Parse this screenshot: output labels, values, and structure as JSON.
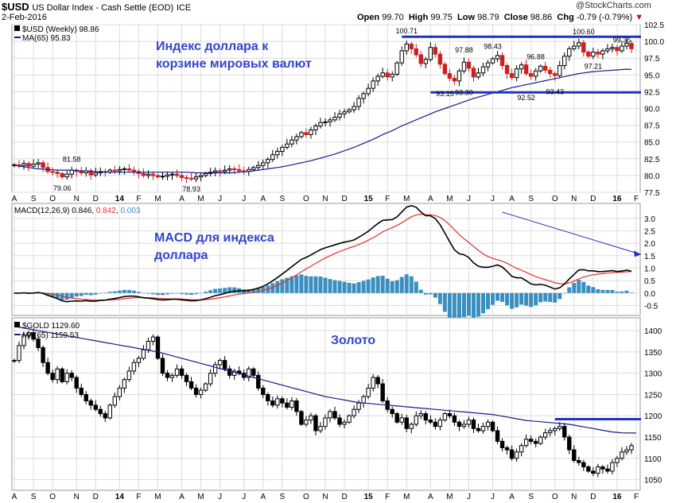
{
  "header": {
    "symbol": "$USD",
    "description": "US Dollar Index - Cash Settle (EOD)",
    "exchange": "ICE",
    "date": "2-Feb-2016",
    "watermark": "@StockCharts.com",
    "open_label": "Open",
    "open": "99.70",
    "high_label": "High",
    "high": "99.75",
    "low_label": "Low",
    "low": "98.79",
    "close_label": "Close",
    "close": "98.86",
    "chg_label": "Chg",
    "chg": "-0.79 (-0.79%)",
    "down_arrow": "▼"
  },
  "colors": {
    "up": "#000000",
    "down": "#cc2020",
    "ma": "#1a1a8c",
    "macd_line": "#000000",
    "signal_line": "#e03030",
    "histogram": "#3a8fc0",
    "annotation_blue": "#3344cc",
    "resistance": "#2233bb",
    "grid": "#dcdcdc"
  },
  "x_axis": {
    "labels": [
      {
        "t": "A",
        "i": 0
      },
      {
        "t": "S",
        "i": 4
      },
      {
        "t": "O",
        "i": 8
      },
      {
        "t": "N",
        "i": 13
      },
      {
        "t": "D",
        "i": 17
      },
      {
        "t": "14",
        "i": 22,
        "bold": true
      },
      {
        "t": "F",
        "i": 26
      },
      {
        "t": "M",
        "i": 30
      },
      {
        "t": "A",
        "i": 35
      },
      {
        "t": "M",
        "i": 39
      },
      {
        "t": "J",
        "i": 43
      },
      {
        "t": "J",
        "i": 48
      },
      {
        "t": "A",
        "i": 52
      },
      {
        "t": "S",
        "i": 56
      },
      {
        "t": "O",
        "i": 61
      },
      {
        "t": "N",
        "i": 65
      },
      {
        "t": "D",
        "i": 69
      },
      {
        "t": "15",
        "i": 74,
        "bold": true
      },
      {
        "t": "F",
        "i": 78
      },
      {
        "t": "M",
        "i": 82
      },
      {
        "t": "A",
        "i": 87
      },
      {
        "t": "M",
        "i": 91
      },
      {
        "t": "J",
        "i": 95
      },
      {
        "t": "J",
        "i": 100
      },
      {
        "t": "A",
        "i": 104
      },
      {
        "t": "S",
        "i": 108
      },
      {
        "t": "O",
        "i": 113
      },
      {
        "t": "N",
        "i": 117
      },
      {
        "t": "D",
        "i": 121
      },
      {
        "t": "16",
        "i": 126,
        "bold": true
      },
      {
        "t": "F",
        "i": 130
      }
    ]
  },
  "annotations": {
    "usd": "Индекс доллара к корзине мировых валют",
    "usd_line1": "Индекс доллара к",
    "usd_line2": "корзине мировых валют",
    "macd_line1": "MACD для индекса",
    "macd_line2": "доллара",
    "gold": "Золото"
  },
  "chart_data": [
    {
      "type": "candlestick",
      "legend": [
        "$USD (Weekly) 98.86",
        "MA(65) 95.83"
      ],
      "ylim": [
        77.5,
        102.5
      ],
      "yticks": [
        77.5,
        80.0,
        82.5,
        85.0,
        87.5,
        90.0,
        92.5,
        95.0,
        97.5,
        100.0,
        102.5
      ],
      "value_labels": [
        {
          "t": "81.58",
          "i": 12,
          "v": 81.58,
          "pos": "above"
        },
        {
          "t": "79.06",
          "i": 10,
          "v": 79.06,
          "pos": "below"
        },
        {
          "t": "78.93",
          "i": 37,
          "v": 78.93,
          "pos": "below"
        },
        {
          "t": "100.71",
          "i": 82,
          "v": 100.71,
          "pos": "above"
        },
        {
          "t": "93.15",
          "i": 90,
          "v": 93.15,
          "pos": "below"
        },
        {
          "t": "93.30",
          "i": 94,
          "v": 93.3,
          "pos": "below"
        },
        {
          "t": "97.88",
          "i": 94,
          "v": 97.88,
          "pos": "above"
        },
        {
          "t": "98.43",
          "i": 100,
          "v": 98.43,
          "pos": "above"
        },
        {
          "t": "92.52",
          "i": 107,
          "v": 92.52,
          "pos": "below"
        },
        {
          "t": "96.88",
          "i": 109,
          "v": 96.88,
          "pos": "above"
        },
        {
          "t": "93.43",
          "i": 113,
          "v": 93.43,
          "pos": "below"
        },
        {
          "t": "100.60",
          "i": 119,
          "v": 100.6,
          "pos": "above"
        },
        {
          "t": "97.21",
          "i": 121,
          "v": 97.21,
          "pos": "below"
        },
        {
          "t": "99.35",
          "i": 127,
          "v": 99.35,
          "pos": "above"
        }
      ],
      "resistance": 100.7,
      "support": 92.4,
      "closes": [
        81.6,
        81.5,
        81.8,
        81.4,
        81.7,
        81.9,
        81.2,
        80.6,
        80.5,
        80.3,
        79.8,
        80.2,
        80.8,
        80.6,
        80.4,
        80.7,
        80.1,
        80.4,
        80.6,
        80.5,
        80.8,
        80.7,
        80.9,
        81.0,
        80.8,
        80.6,
        80.3,
        80.0,
        80.2,
        80.0,
        79.8,
        79.9,
        80.1,
        80.2,
        80.0,
        79.7,
        79.6,
        79.5,
        79.8,
        80.0,
        80.3,
        80.5,
        80.7,
        80.6,
        80.8,
        81.0,
        80.9,
        80.7,
        80.6,
        80.9,
        81.2,
        81.5,
        81.9,
        82.4,
        83.1,
        83.6,
        84.2,
        84.7,
        85.3,
        85.8,
        86.4,
        86.1,
        86.8,
        87.4,
        87.9,
        88.0,
        88.3,
        88.7,
        89.2,
        89.5,
        89.8,
        90.3,
        91.5,
        92.2,
        93.0,
        94.1,
        94.8,
        95.3,
        94.7,
        95.1,
        96.8,
        98.6,
        99.6,
        98.9,
        98.0,
        96.7,
        97.3,
        99.1,
        98.1,
        96.6,
        95.2,
        94.5,
        94.1,
        95.6,
        96.9,
        96.0,
        94.7,
        95.3,
        96.2,
        96.8,
        97.4,
        97.9,
        96.4,
        95.2,
        94.6,
        95.9,
        96.5,
        95.2,
        94.8,
        95.6,
        96.3,
        95.7,
        95.2,
        94.9,
        96.4,
        97.8,
        98.9,
        99.3,
        99.8,
        98.4,
        97.8,
        98.4,
        98.1,
        98.6,
        98.9,
        99.1,
        98.6,
        99.3,
        99.7,
        98.9
      ],
      "ma": [
        81.55,
        81.4,
        81.3,
        81.2,
        81.1,
        81.0,
        80.95,
        80.9,
        80.85,
        80.8,
        80.8,
        80.8,
        80.8,
        80.75,
        80.7,
        80.7,
        80.65,
        80.6,
        80.55,
        80.5,
        80.5,
        80.5,
        80.5,
        80.5,
        80.5,
        80.5,
        80.5,
        80.5,
        80.5,
        80.5,
        80.5,
        80.5,
        80.5,
        80.5,
        80.5,
        80.5,
        80.5,
        80.45,
        80.4,
        80.4,
        80.4,
        80.4,
        80.4,
        80.4,
        80.4,
        80.4,
        80.45,
        80.5,
        80.55,
        80.6,
        80.7,
        80.8,
        80.9,
        81.0,
        81.1,
        81.2,
        81.3,
        81.45,
        81.6,
        81.75,
        81.9,
        82.05,
        82.2,
        82.4,
        82.6,
        82.8,
        83.0,
        83.2,
        83.45,
        83.7,
        83.95,
        84.2,
        84.5,
        84.8,
        85.1,
        85.4,
        85.75,
        86.1,
        86.4,
        86.7,
        87.05,
        87.4,
        87.7,
        88.0,
        88.3,
        88.6,
        88.9,
        89.2,
        89.5,
        89.75,
        90.0,
        90.25,
        90.5,
        90.75,
        91.0,
        91.25,
        91.5,
        91.7,
        91.9,
        92.1,
        92.3,
        92.5,
        92.7,
        92.9,
        93.1,
        93.25,
        93.4,
        93.55,
        93.7,
        93.85,
        94.0,
        94.15,
        94.3,
        94.45,
        94.6,
        94.75,
        94.9,
        95.05,
        95.2,
        95.3,
        95.4,
        95.5,
        95.55,
        95.6,
        95.65,
        95.7,
        95.75,
        95.8,
        95.85,
        95.83
      ]
    },
    {
      "type": "macd",
      "legend": "MACD(12,26,9)",
      "macd": "0.846",
      "signal": "0.842",
      "hist": "0.003",
      "ylim": [
        -0.9,
        3.6
      ],
      "yticks": [
        -0.5,
        0.0,
        0.5,
        1.0,
        1.5,
        2.0,
        2.5,
        3.0
      ],
      "trendline": {
        "i0": 102,
        "v0": 3.25,
        "i1": 131,
        "v1": 1.55
      }
    },
    {
      "type": "candlestick",
      "legend": [
        "$GOLD 1129.60",
        "MA(65) 1159.53"
      ],
      "ylim": [
        1025,
        1430
      ],
      "yticks": [
        1050,
        1100,
        1150,
        1200,
        1250,
        1300,
        1350,
        1400
      ],
      "resistance": 1192,
      "closes": [
        1330,
        1365,
        1390,
        1395,
        1380,
        1360,
        1325,
        1300,
        1285,
        1310,
        1280,
        1300,
        1290,
        1265,
        1250,
        1235,
        1225,
        1215,
        1205,
        1195,
        1225,
        1245,
        1265,
        1285,
        1305,
        1325,
        1335,
        1355,
        1375,
        1385,
        1335,
        1300,
        1290,
        1295,
        1310,
        1295,
        1280,
        1265,
        1250,
        1260,
        1275,
        1300,
        1320,
        1330,
        1310,
        1295,
        1305,
        1300,
        1290,
        1310,
        1295,
        1265,
        1250,
        1235,
        1225,
        1240,
        1230,
        1220,
        1235,
        1210,
        1180,
        1190,
        1200,
        1165,
        1175,
        1195,
        1210,
        1195,
        1180,
        1185,
        1200,
        1215,
        1230,
        1245,
        1265,
        1290,
        1275,
        1235,
        1215,
        1205,
        1185,
        1195,
        1170,
        1180,
        1200,
        1205,
        1190,
        1185,
        1175,
        1190,
        1205,
        1200,
        1185,
        1175,
        1180,
        1190,
        1170,
        1165,
        1175,
        1185,
        1165,
        1140,
        1125,
        1120,
        1100,
        1115,
        1130,
        1145,
        1140,
        1135,
        1150,
        1160,
        1165,
        1170,
        1175,
        1150,
        1120,
        1095,
        1090,
        1080,
        1070,
        1065,
        1080,
        1075,
        1070,
        1090,
        1100,
        1115,
        1120,
        1130
      ],
      "ma": [
        1410,
        1408,
        1406,
        1404,
        1402,
        1400,
        1398,
        1396,
        1394,
        1392,
        1390,
        1388,
        1386,
        1384,
        1382,
        1380,
        1378,
        1376,
        1374,
        1372,
        1370,
        1368,
        1366,
        1364,
        1362,
        1360,
        1358,
        1356,
        1354,
        1352,
        1350,
        1347,
        1344,
        1341,
        1338,
        1335,
        1332,
        1329,
        1326,
        1323,
        1320,
        1317,
        1314,
        1311,
        1308,
        1305,
        1302,
        1299,
        1296,
        1293,
        1290,
        1287,
        1284,
        1281,
        1278,
        1275,
        1272,
        1269,
        1266,
        1263,
        1260,
        1257,
        1254,
        1251,
        1248,
        1245,
        1243,
        1241,
        1239,
        1237,
        1235,
        1233,
        1231,
        1230,
        1229,
        1228,
        1227,
        1226,
        1225,
        1224,
        1223,
        1222,
        1221,
        1220,
        1219,
        1218,
        1217,
        1216,
        1215,
        1214,
        1213,
        1212,
        1211,
        1210,
        1209,
        1208,
        1207,
        1206,
        1205,
        1204,
        1203,
        1201,
        1199,
        1197,
        1195,
        1193,
        1191,
        1189,
        1188,
        1187,
        1186,
        1185,
        1184,
        1183,
        1182,
        1181,
        1180,
        1178,
        1176,
        1174,
        1172,
        1170,
        1168,
        1166,
        1164,
        1162,
        1161,
        1160,
        1159.6,
        1159.5,
        1159.53
      ]
    }
  ]
}
